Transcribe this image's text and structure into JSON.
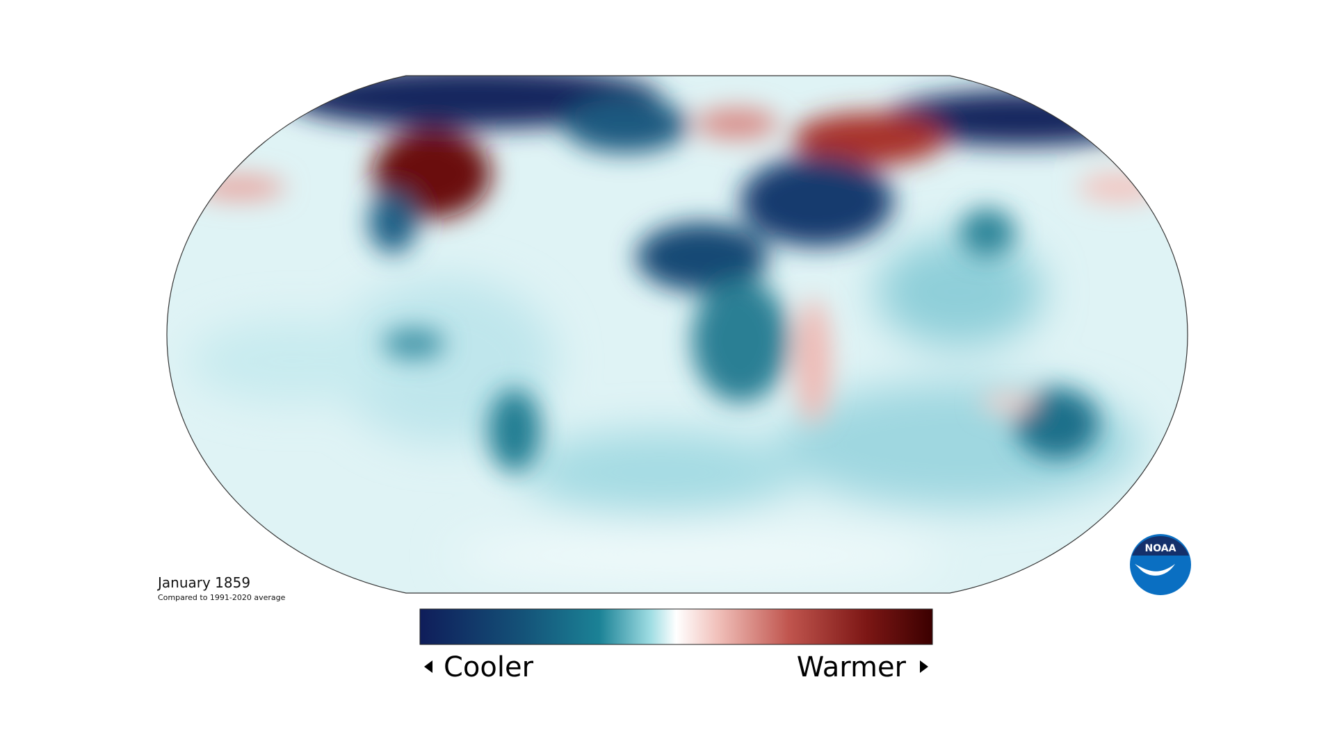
{
  "caption": {
    "title": "January 1859",
    "subtitle": "Compared to 1991-2020 average"
  },
  "legend": {
    "low_label": "Cooler",
    "high_label": "Warmer"
  },
  "logo": {
    "text": "NOAA"
  }
}
